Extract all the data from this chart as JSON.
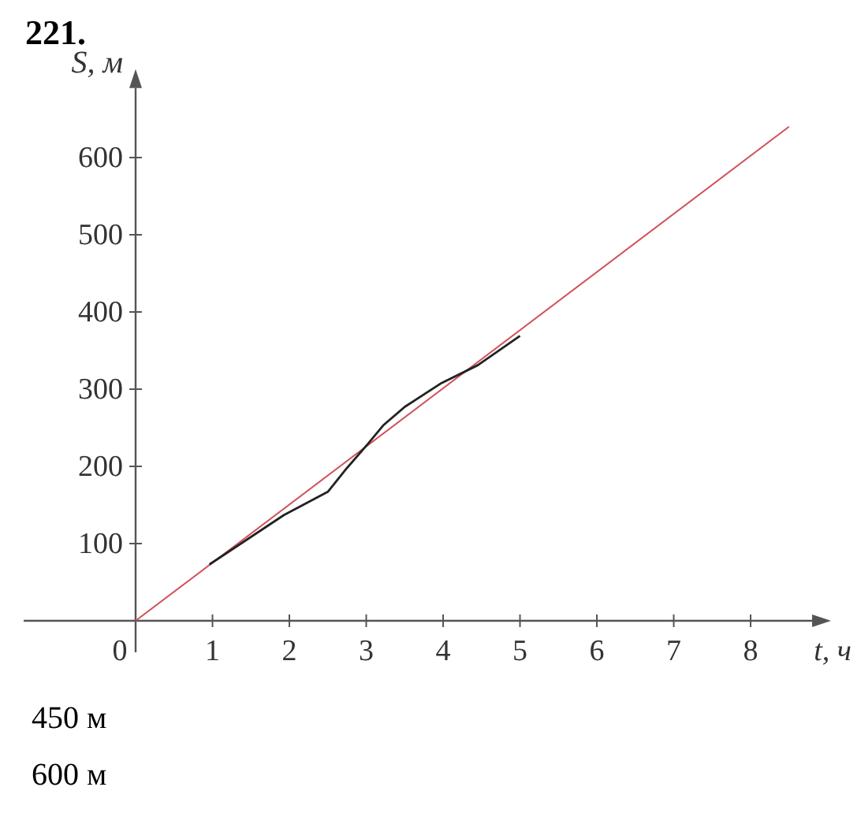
{
  "chart_data": {
    "type": "line",
    "title": "221.",
    "xlabel": "t, ч",
    "ylabel": "S, м",
    "annotations": [
      "450 м",
      "600 м"
    ],
    "xlim": [
      0,
      8.8
    ],
    "ylim": [
      0,
      690
    ],
    "xticks": [
      0,
      1,
      2,
      3,
      4,
      5,
      6,
      7,
      8
    ],
    "yticks": [
      {
        "value": 0,
        "label": null
      },
      100,
      200,
      300,
      400,
      500,
      600
    ],
    "grid": false,
    "series": [
      {
        "color": "#d0505a",
        "x": [
          0,
          8.5
        ],
        "values": [
          0,
          640
        ]
      },
      {
        "color": "#222222",
        "x": [
          0.96,
          1.93,
          2.5,
          2.75,
          3.02,
          3.22,
          3.5,
          3.98,
          4.45,
          5.0
        ],
        "values": [
          73,
          137,
          167,
          198,
          229,
          253,
          277,
          308,
          331,
          369
        ]
      }
    ]
  }
}
